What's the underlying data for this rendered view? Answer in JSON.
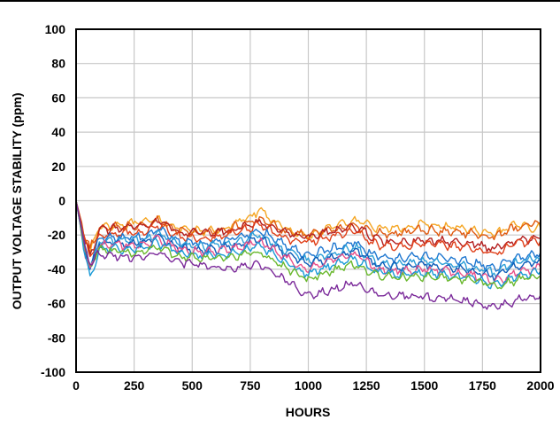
{
  "chart_data": {
    "type": "line",
    "xlabel": "HOURS",
    "ylabel": "OUTPUT VOLTAGE STABILITY (ppm)",
    "xlim": [
      0,
      2000
    ],
    "ylim": [
      -100,
      100
    ],
    "xticks": [
      0,
      250,
      500,
      750,
      1000,
      1250,
      1500,
      1750,
      2000
    ],
    "yticks": [
      100,
      80,
      60,
      40,
      20,
      0,
      -20,
      -40,
      -60,
      -80,
      -100
    ],
    "xtick_labels": [
      "0",
      "250",
      "500",
      "750",
      "1000",
      "1250",
      "1500",
      "1750",
      "2000"
    ],
    "ytick_labels": [
      "100",
      "80",
      "60",
      "40",
      "20",
      "0",
      "-20",
      "-40",
      "-60",
      "-80",
      "-100"
    ],
    "grid": true,
    "series": [
      {
        "color": "#f5a623",
        "x": [
          0,
          40,
          60,
          100,
          200,
          300,
          350,
          450,
          550,
          650,
          790,
          900,
          1000,
          1100,
          1200,
          1300,
          1400,
          1500,
          1600,
          1700,
          1800,
          1900,
          2000
        ],
        "values": [
          0,
          -22,
          -30,
          -15,
          -14,
          -13,
          -10,
          -17,
          -18,
          -16,
          -6,
          -16,
          -21,
          -15,
          -12,
          -16,
          -16,
          -14,
          -15,
          -17,
          -20,
          -14,
          -16
        ]
      },
      {
        "color": "#e05a10",
        "x": [
          0,
          40,
          60,
          100,
          200,
          300,
          350,
          450,
          550,
          650,
          790,
          900,
          1000,
          1100,
          1200,
          1300,
          1400,
          1500,
          1600,
          1700,
          1800,
          1900,
          2000
        ],
        "values": [
          0,
          -22,
          -28,
          -16,
          -15,
          -14,
          -11,
          -18,
          -19,
          -17,
          -10,
          -18,
          -20,
          -17,
          -15,
          -19,
          -19,
          -17,
          -18,
          -19,
          -21,
          -15,
          -13
        ]
      },
      {
        "color": "#b41f1f",
        "x": [
          0,
          40,
          60,
          100,
          200,
          300,
          350,
          450,
          550,
          650,
          790,
          900,
          1000,
          1100,
          1200,
          1300,
          1400,
          1500,
          1600,
          1700,
          1800,
          1900,
          2000
        ],
        "values": [
          0,
          -24,
          -32,
          -17,
          -16,
          -15,
          -11,
          -19,
          -19,
          -18,
          -12,
          -19,
          -21,
          -18,
          -15,
          -23,
          -25,
          -23,
          -24,
          -25,
          -28,
          -23,
          -22
        ]
      },
      {
        "color": "#e0401a",
        "x": [
          0,
          40,
          60,
          100,
          200,
          300,
          350,
          450,
          550,
          650,
          790,
          900,
          1000,
          1100,
          1200,
          1300,
          1400,
          1500,
          1600,
          1700,
          1800,
          1900,
          2000
        ],
        "values": [
          0,
          -25,
          -33,
          -20,
          -19,
          -18,
          -14,
          -21,
          -22,
          -20,
          -14,
          -22,
          -24,
          -21,
          -18,
          -26,
          -27,
          -25,
          -26,
          -28,
          -31,
          -25,
          -23
        ]
      },
      {
        "color": "#1f77d0",
        "x": [
          0,
          40,
          60,
          100,
          200,
          300,
          350,
          450,
          550,
          650,
          790,
          900,
          1000,
          1100,
          1200,
          1300,
          1400,
          1500,
          1600,
          1700,
          1800,
          1900,
          2000
        ],
        "values": [
          0,
          -28,
          -38,
          -22,
          -21,
          -21,
          -17,
          -24,
          -25,
          -23,
          -17,
          -26,
          -32,
          -28,
          -24,
          -33,
          -34,
          -32,
          -34,
          -36,
          -39,
          -33,
          -30
        ]
      },
      {
        "color": "#2c9fd8",
        "x": [
          0,
          40,
          60,
          100,
          200,
          300,
          350,
          450,
          550,
          650,
          790,
          900,
          1000,
          1100,
          1200,
          1300,
          1400,
          1500,
          1600,
          1700,
          1800,
          1900,
          2000
        ],
        "values": [
          0,
          -30,
          -40,
          -24,
          -23,
          -23,
          -19,
          -26,
          -27,
          -25,
          -20,
          -29,
          -35,
          -31,
          -27,
          -36,
          -37,
          -35,
          -37,
          -39,
          -42,
          -36,
          -33
        ]
      },
      {
        "color": "#0d5cb8",
        "x": [
          0,
          40,
          60,
          100,
          200,
          300,
          350,
          450,
          550,
          650,
          790,
          900,
          1000,
          1100,
          1200,
          1300,
          1400,
          1500,
          1600,
          1700,
          1800,
          1900,
          2000
        ],
        "values": [
          0,
          -31,
          -41,
          -25,
          -25,
          -24,
          -21,
          -28,
          -29,
          -27,
          -22,
          -31,
          -37,
          -33,
          -29,
          -38,
          -39,
          -37,
          -39,
          -41,
          -44,
          -38,
          -35
        ]
      },
      {
        "color": "#e8508a",
        "x": [
          0,
          40,
          60,
          100,
          200,
          300,
          350,
          450,
          550,
          650,
          790,
          900,
          1000,
          1100,
          1200,
          1300,
          1400,
          1500,
          1600,
          1700,
          1800,
          1900,
          2000
        ],
        "values": [
          0,
          -31,
          -40,
          -26,
          -26,
          -25,
          -22,
          -29,
          -30,
          -29,
          -24,
          -33,
          -40,
          -35,
          -31,
          -40,
          -41,
          -40,
          -41,
          -43,
          -47,
          -42,
          -39
        ]
      },
      {
        "color": "#1a9ad6",
        "x": [
          0,
          40,
          60,
          100,
          200,
          300,
          350,
          450,
          550,
          650,
          790,
          900,
          1000,
          1100,
          1200,
          1300,
          1400,
          1500,
          1600,
          1700,
          1800,
          1900,
          2000
        ],
        "values": [
          0,
          -32,
          -46,
          -27,
          -28,
          -27,
          -24,
          -31,
          -32,
          -31,
          -26,
          -36,
          -43,
          -38,
          -34,
          -42,
          -43,
          -42,
          -43,
          -45,
          -49,
          -44,
          -41
        ]
      },
      {
        "color": "#6ab82e",
        "x": [
          0,
          40,
          60,
          100,
          200,
          300,
          350,
          450,
          550,
          650,
          790,
          900,
          1000,
          1100,
          1200,
          1300,
          1400,
          1500,
          1600,
          1700,
          1800,
          1900,
          2000
        ],
        "values": [
          0,
          -30,
          -38,
          -28,
          -30,
          -30,
          -26,
          -33,
          -34,
          -33,
          -30,
          -39,
          -46,
          -41,
          -37,
          -44,
          -45,
          -44,
          -45,
          -46,
          -50,
          -46,
          -44
        ]
      },
      {
        "color": "#7b2a9a",
        "x": [
          0,
          40,
          60,
          100,
          200,
          300,
          350,
          450,
          550,
          650,
          790,
          900,
          1000,
          1100,
          1200,
          1300,
          1400,
          1500,
          1600,
          1700,
          1800,
          1900,
          2000
        ],
        "values": [
          0,
          -28,
          -36,
          -31,
          -33,
          -33,
          -30,
          -36,
          -38,
          -40,
          -37,
          -46,
          -55,
          -52,
          -48,
          -55,
          -55,
          -56,
          -57,
          -59,
          -62,
          -58,
          -55
        ]
      }
    ]
  }
}
